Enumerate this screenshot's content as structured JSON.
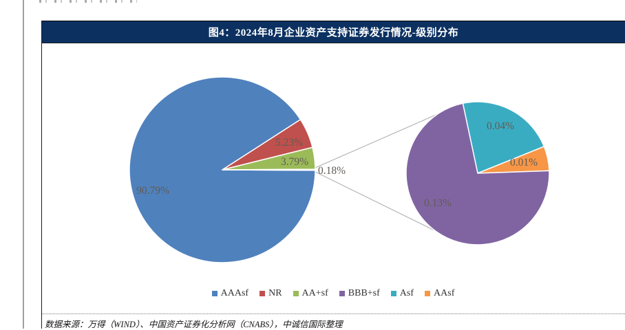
{
  "figure": {
    "title": "图4：2024年8月企业资产支持证券发行情况-级别分布",
    "source_note": "数据来源：万得（WIND）、中国资产证券化分析网（CNABS），中诚信国际整理",
    "title_bar_color": "#0c3161"
  },
  "chart_data": {
    "type": "pie",
    "subtype": "pie-of-pie",
    "title": "图4：2024年8月企业资产支持证券发行情况-级别分布",
    "unit": "%",
    "categories": [
      "AAAsf",
      "NR",
      "AA+sf",
      "BBB+sf",
      "Asf",
      "AAsf"
    ],
    "values": [
      90.79,
      5.23,
      3.79,
      0.13,
      0.04,
      0.01
    ],
    "colors": [
      "#4f81bd",
      "#c0504d",
      "#9bbb59",
      "#8064a2",
      "#3aacc2",
      "#f79646"
    ],
    "main_pie_slices": [
      {
        "label": "AAAsf",
        "display": "90.79%"
      },
      {
        "label": "NR",
        "display": "5.23%"
      },
      {
        "label": "AA+sf",
        "display": "3.79%"
      },
      {
        "label": "secondary-total",
        "display": "0.18%"
      }
    ],
    "secondary_pie_slices": [
      {
        "label": "BBB+sf",
        "display": "0.13%"
      },
      {
        "label": "Asf",
        "display": "0.04%"
      },
      {
        "label": "AAsf",
        "display": "0.01%"
      }
    ],
    "data_labels": {
      "aaasf": "90.79%",
      "nr": "5.23%",
      "aa_plus_sf": "3.79%",
      "other": "0.18%",
      "bbb_plus_sf": "0.13%",
      "asf": "0.04%",
      "aasf": "0.01%"
    },
    "legend": [
      {
        "label": "AAAsf",
        "color": "#4f81bd"
      },
      {
        "label": "NR",
        "color": "#c0504d"
      },
      {
        "label": "AA+sf",
        "color": "#9bbb59"
      },
      {
        "label": "BBB+sf",
        "color": "#8064a2"
      },
      {
        "label": "Asf",
        "color": "#3aacc2"
      },
      {
        "label": "AAsf",
        "color": "#f79646"
      }
    ],
    "legend_position": "bottom"
  }
}
